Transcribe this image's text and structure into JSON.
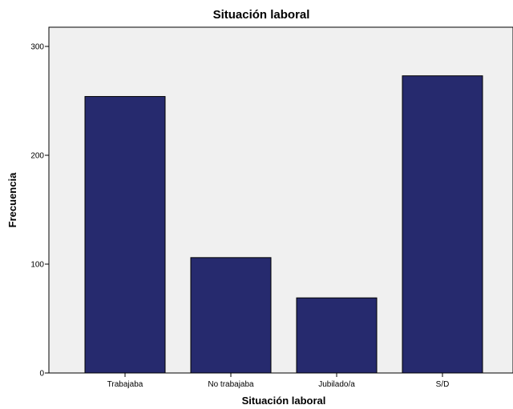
{
  "chart_data": {
    "type": "bar",
    "title": "Situación laboral",
    "xlabel": "Situación laboral",
    "ylabel": "Frecuencia",
    "categories": [
      "Trabajaba",
      "No trabajaba",
      "Jubilado/a",
      "S/D"
    ],
    "values": [
      254,
      106,
      69,
      273
    ],
    "ylim": [
      0,
      300
    ],
    "yticks": [
      0,
      100,
      200,
      300
    ],
    "grid": false,
    "legend": "none",
    "bar_color": "#262a6e",
    "plot_background": "#f0f0f0"
  }
}
